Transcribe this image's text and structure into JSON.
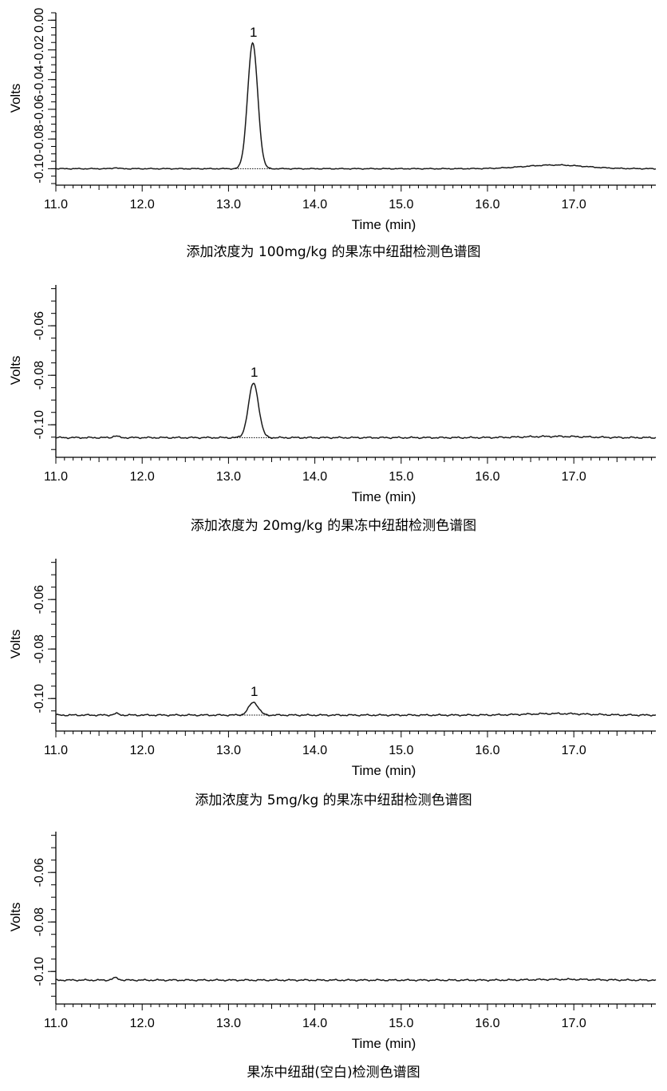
{
  "chart_data": [
    {
      "type": "line",
      "caption": "添加浓度为 100mg/kg 的果冻中纽甜检测色谱图",
      "xlabel": "Time (min)",
      "ylabel": "Volts",
      "xlim": [
        11.0,
        17.95
      ],
      "ylim": [
        -0.11,
        0.005
      ],
      "x_ticks": [
        "11.0",
        "12.0",
        "13.0",
        "14.0",
        "15.0",
        "16.0",
        "17.0"
      ],
      "y_ticks": [
        "0.00",
        "-0.02",
        "-0.04",
        "-0.06",
        "-0.08",
        "-0.10"
      ],
      "y_tick_values": [
        0.0,
        -0.02,
        -0.04,
        -0.06,
        -0.08,
        -0.1
      ],
      "baseline": -0.1,
      "peaks": [
        {
          "label": "1",
          "time": 13.28,
          "height": 0.0845,
          "sigma": 0.058,
          "start": 13.08,
          "end": 13.5
        }
      ],
      "bumps": [
        {
          "time": 11.69,
          "height": 0.0007,
          "sigma": 0.03
        },
        {
          "time": 16.78,
          "height": 0.0025,
          "sigma": 0.35
        }
      ]
    },
    {
      "type": "line",
      "caption": "添加浓度为 20mg/kg 的果冻中纽甜检测色谱图",
      "xlabel": "Time (min)",
      "ylabel": "Volts",
      "xlim": [
        11.0,
        17.95
      ],
      "ylim": [
        -0.1125,
        -0.0435
      ],
      "x_ticks": [
        "11.0",
        "12.0",
        "13.0",
        "14.0",
        "15.0",
        "16.0",
        "17.0"
      ],
      "y_ticks": [
        "-0.06",
        "-0.08",
        "-0.10"
      ],
      "y_tick_values": [
        -0.06,
        -0.08,
        -0.1
      ],
      "baseline": -0.1052,
      "peaks": [
        {
          "label": "1",
          "time": 13.29,
          "height": 0.022,
          "sigma": 0.058,
          "start": 13.07,
          "end": 13.5
        }
      ],
      "bumps": [
        {
          "time": 11.69,
          "height": 0.0007,
          "sigma": 0.03
        },
        {
          "time": 16.78,
          "height": 0.0005,
          "sigma": 0.35
        }
      ]
    },
    {
      "type": "line",
      "caption": "添加浓度为 5mg/kg 的果冻中纽甜检测色谱图",
      "xlabel": "Time (min)",
      "ylabel": "Volts",
      "xlim": [
        11.0,
        17.95
      ],
      "ylim": [
        -0.1125,
        -0.0435
      ],
      "x_ticks": [
        "11.0",
        "12.0",
        "13.0",
        "14.0",
        "15.0",
        "16.0",
        "17.0"
      ],
      "y_ticks": [
        "-0.06",
        "-0.08",
        "-0.10"
      ],
      "y_tick_values": [
        -0.06,
        -0.08,
        -0.1
      ],
      "baseline": -0.1067,
      "peaks": [
        {
          "label": "1",
          "time": 13.29,
          "height": 0.0052,
          "sigma": 0.055,
          "start": 13.1,
          "end": 13.47
        }
      ],
      "bumps": [
        {
          "time": 11.7,
          "height": 0.0006,
          "sigma": 0.03
        },
        {
          "time": 16.8,
          "height": 0.0006,
          "sigma": 0.35
        }
      ]
    },
    {
      "type": "line",
      "caption": "果冻中纽甜(空白)检测色谱图",
      "xlabel": "Time (min)",
      "ylabel": "Volts",
      "xlim": [
        11.0,
        17.95
      ],
      "ylim": [
        -0.1125,
        -0.0435
      ],
      "x_ticks": [
        "11.0",
        "12.0",
        "13.0",
        "14.0",
        "15.0",
        "16.0",
        "17.0"
      ],
      "y_ticks": [
        "-0.06",
        "-0.08",
        "-0.10"
      ],
      "y_tick_values": [
        -0.06,
        -0.08,
        -0.1
      ],
      "baseline": -0.1035,
      "peaks": [],
      "bumps": [
        {
          "time": 11.69,
          "height": 0.0009,
          "sigma": 0.035
        },
        {
          "time": 16.9,
          "height": 0.0003,
          "sigma": 0.35
        }
      ]
    }
  ]
}
